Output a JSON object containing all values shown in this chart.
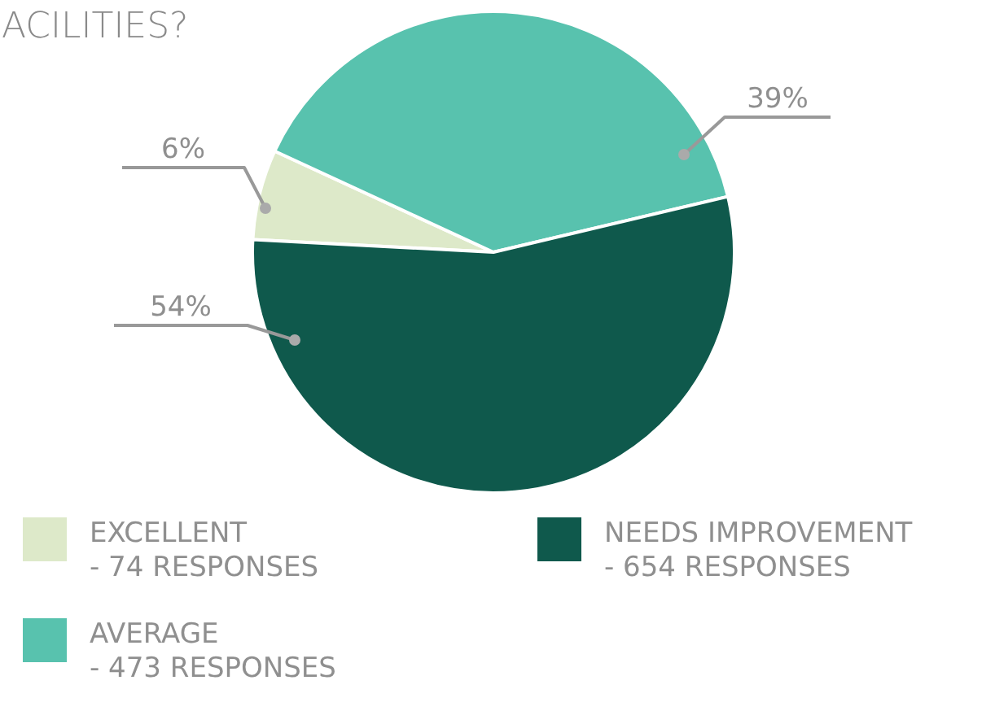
{
  "chart_data": {
    "type": "pie",
    "title": "ACILITIES?",
    "categories": [
      "EXCELLENT\n- 74 RESPONSES",
      "AVERAGE\n- 473 RESPONSES",
      "NEEDS IMPROVEMENT\n- 654 RESPONSES"
    ],
    "values": [
      6,
      39,
      54
    ],
    "colors": [
      "#dde9c9",
      "#58c2ae",
      "#0f594c"
    ],
    "value_labels": [
      "6%",
      "39%",
      "54%"
    ],
    "legend": "bottom"
  }
}
